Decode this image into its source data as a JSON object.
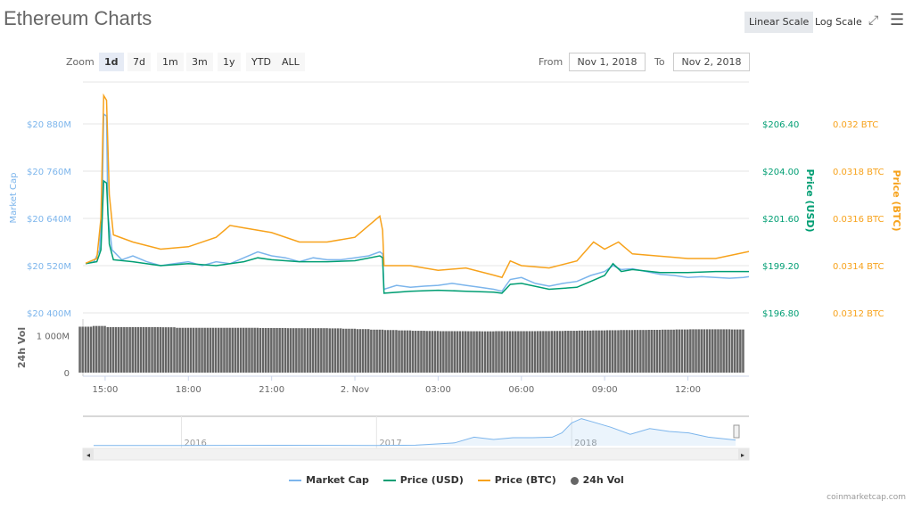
{
  "header": {
    "title": "Ethereum Charts",
    "linear_scale": "Linear Scale",
    "log_scale": "Log Scale"
  },
  "zoom": {
    "label": "Zoom",
    "buttons": [
      "1d",
      "7d",
      "1m",
      "3m",
      "1y",
      "YTD",
      "ALL"
    ],
    "active": "1d"
  },
  "range": {
    "from_label": "From",
    "from_value": "Nov 1, 2018",
    "to_label": "To",
    "to_value": "Nov 2, 2018"
  },
  "colors": {
    "market_cap": "#7cb5ec",
    "price_usd": "#009e73",
    "price_btc": "#f7a21b",
    "volume": "#666666"
  },
  "chart_data": {
    "type": "line",
    "x_unit": "hours since Nov 1 00:00",
    "x_range": [
      14.2,
      38.2
    ],
    "x_ticks": [
      {
        "h": 15,
        "label": "15:00"
      },
      {
        "h": 18,
        "label": "18:00"
      },
      {
        "h": 21,
        "label": "21:00"
      },
      {
        "h": 24,
        "label": "2. Nov"
      },
      {
        "h": 27,
        "label": "03:00"
      },
      {
        "h": 30,
        "label": "06:00"
      },
      {
        "h": 33,
        "label": "09:00"
      },
      {
        "h": 36,
        "label": "12:00"
      }
    ],
    "axes": {
      "market_cap": {
        "title": "Market Cap",
        "range": [
          20400,
          20880
        ],
        "ticks": [
          {
            "v": 20880,
            "label": "$20 880M"
          },
          {
            "v": 20760,
            "label": "$20 760M"
          },
          {
            "v": 20640,
            "label": "$20 640M"
          },
          {
            "v": 20520,
            "label": "$20 520M"
          },
          {
            "v": 20400,
            "label": "$20 400M"
          }
        ]
      },
      "price_usd": {
        "title": "Price (USD)",
        "range": [
          196.8,
          206.4
        ],
        "ticks": [
          {
            "v": 206.4,
            "label": "$206.40"
          },
          {
            "v": 204,
            "label": "$204.00"
          },
          {
            "v": 201.6,
            "label": "$201.60"
          },
          {
            "v": 199.2,
            "label": "$199.20"
          },
          {
            "v": 196.8,
            "label": "$196.80"
          }
        ]
      },
      "price_btc": {
        "title": "Price (BTC)",
        "range": [
          0.0312,
          0.032
        ],
        "ticks": [
          {
            "v": 0.032,
            "label": "0.032 BTC"
          },
          {
            "v": 0.0318,
            "label": "0.0318 BTC"
          },
          {
            "v": 0.0316,
            "label": "0.0316 BTC"
          },
          {
            "v": 0.0314,
            "label": "0.0314 BTC"
          },
          {
            "v": 0.0312,
            "label": "0.0312 BTC"
          }
        ]
      },
      "volume": {
        "title": "24h Vol",
        "max": 1300,
        "ticks": [
          {
            "v": 1000,
            "label": "1 000M"
          },
          {
            "v": 0,
            "label": "0"
          }
        ]
      }
    },
    "series": [
      {
        "name": "Market Cap",
        "axis": "market_cap",
        "points": [
          [
            14.3,
            20525
          ],
          [
            14.6,
            20530
          ],
          [
            14.8,
            20560
          ],
          [
            14.9,
            20700
          ],
          [
            14.95,
            20905
          ],
          [
            15.05,
            20900
          ],
          [
            15.1,
            20650
          ],
          [
            15.25,
            20560
          ],
          [
            15.6,
            20535
          ],
          [
            16,
            20545
          ],
          [
            16.5,
            20530
          ],
          [
            17,
            20520
          ],
          [
            17.5,
            20525
          ],
          [
            18,
            20530
          ],
          [
            18.5,
            20520
          ],
          [
            19,
            20530
          ],
          [
            19.5,
            20525
          ],
          [
            20,
            20540
          ],
          [
            20.5,
            20555
          ],
          [
            21,
            20545
          ],
          [
            21.5,
            20540
          ],
          [
            22,
            20530
          ],
          [
            22.5,
            20540
          ],
          [
            23,
            20535
          ],
          [
            23.5,
            20535
          ],
          [
            24,
            20540
          ],
          [
            24.5,
            20545
          ],
          [
            24.9,
            20555
          ],
          [
            25.0,
            20550
          ],
          [
            25.05,
            20460
          ],
          [
            25.5,
            20470
          ],
          [
            26,
            20465
          ],
          [
            26.5,
            20468
          ],
          [
            27,
            20470
          ],
          [
            27.5,
            20475
          ],
          [
            28,
            20470
          ],
          [
            28.5,
            20465
          ],
          [
            29,
            20460
          ],
          [
            29.3,
            20455
          ],
          [
            29.6,
            20485
          ],
          [
            30,
            20490
          ],
          [
            30.5,
            20475
          ],
          [
            31,
            20468
          ],
          [
            31.5,
            20475
          ],
          [
            32,
            20480
          ],
          [
            32.5,
            20495
          ],
          [
            33,
            20505
          ],
          [
            33.3,
            20520
          ],
          [
            33.6,
            20510
          ],
          [
            34,
            20512
          ],
          [
            34.5,
            20505
          ],
          [
            35,
            20498
          ],
          [
            35.5,
            20495
          ],
          [
            36,
            20490
          ],
          [
            36.5,
            20492
          ],
          [
            37,
            20490
          ],
          [
            37.5,
            20488
          ],
          [
            38,
            20490
          ],
          [
            38.2,
            20492
          ]
        ]
      },
      {
        "name": "Price (USD)",
        "axis": "price_usd",
        "points": [
          [
            14.3,
            199.3
          ],
          [
            14.7,
            199.4
          ],
          [
            14.85,
            200
          ],
          [
            14.95,
            203.5
          ],
          [
            15.05,
            203.4
          ],
          [
            15.15,
            200.3
          ],
          [
            15.3,
            199.5
          ],
          [
            16,
            199.4
          ],
          [
            17,
            199.2
          ],
          [
            18,
            199.3
          ],
          [
            19,
            199.2
          ],
          [
            20,
            199.4
          ],
          [
            20.5,
            199.6
          ],
          [
            21,
            199.5
          ],
          [
            22,
            199.4
          ],
          [
            23,
            199.4
          ],
          [
            24,
            199.45
          ],
          [
            24.9,
            199.7
          ],
          [
            25.0,
            199.6
          ],
          [
            25.05,
            197.8
          ],
          [
            26,
            197.9
          ],
          [
            27,
            197.95
          ],
          [
            28,
            197.9
          ],
          [
            29,
            197.85
          ],
          [
            29.3,
            197.8
          ],
          [
            29.6,
            198.25
          ],
          [
            30,
            198.3
          ],
          [
            31,
            198.0
          ],
          [
            32,
            198.1
          ],
          [
            32.5,
            198.4
          ],
          [
            33,
            198.7
          ],
          [
            33.3,
            199.3
          ],
          [
            33.6,
            198.9
          ],
          [
            34,
            199.0
          ],
          [
            35,
            198.85
          ],
          [
            36,
            198.85
          ],
          [
            37,
            198.9
          ],
          [
            38.2,
            198.9
          ]
        ]
      },
      {
        "name": "Price (BTC)",
        "axis": "price_btc",
        "points": [
          [
            14.3,
            0.03141
          ],
          [
            14.7,
            0.03143
          ],
          [
            14.85,
            0.0316
          ],
          [
            14.95,
            0.03212
          ],
          [
            15.05,
            0.0321
          ],
          [
            15.15,
            0.0317
          ],
          [
            15.3,
            0.03153
          ],
          [
            16,
            0.0315
          ],
          [
            17,
            0.03147
          ],
          [
            18,
            0.03148
          ],
          [
            19,
            0.03152
          ],
          [
            19.5,
            0.03157
          ],
          [
            20,
            0.03156
          ],
          [
            21,
            0.03154
          ],
          [
            22,
            0.0315
          ],
          [
            23,
            0.0315
          ],
          [
            24,
            0.03152
          ],
          [
            24.9,
            0.03161
          ],
          [
            25.0,
            0.03155
          ],
          [
            25.05,
            0.0314
          ],
          [
            26,
            0.0314
          ],
          [
            27,
            0.03138
          ],
          [
            28,
            0.03139
          ],
          [
            29,
            0.03136
          ],
          [
            29.3,
            0.03135
          ],
          [
            29.6,
            0.03142
          ],
          [
            30,
            0.0314
          ],
          [
            31,
            0.03139
          ],
          [
            32,
            0.03142
          ],
          [
            32.6,
            0.0315
          ],
          [
            33,
            0.03147
          ],
          [
            33.5,
            0.0315
          ],
          [
            34,
            0.03145
          ],
          [
            35,
            0.03144
          ],
          [
            36,
            0.03143
          ],
          [
            37,
            0.03143
          ],
          [
            38.2,
            0.03146
          ]
        ]
      }
    ],
    "volume": {
      "name": "24h Vol",
      "start_h": 14.3,
      "step_h": 0.5,
      "values": [
        1240,
        1260,
        1230,
        1230,
        1230,
        1230,
        1225,
        1210,
        1210,
        1210,
        1210,
        1210,
        1210,
        1205,
        1205,
        1200,
        1200,
        1200,
        1195,
        1185,
        1175,
        1160,
        1150,
        1140,
        1130,
        1125,
        1120,
        1120,
        1118,
        1115,
        1120,
        1120,
        1120,
        1122,
        1125,
        1130,
        1135,
        1140,
        1145,
        1150,
        1152,
        1155,
        1160,
        1165,
        1170,
        1170,
        1170,
        1165
      ]
    },
    "navigator": {
      "year_ticks": [
        {
          "y": 2016,
          "label": "2016"
        },
        {
          "y": 2017,
          "label": "2017"
        },
        {
          "y": 2018,
          "label": "2018"
        }
      ],
      "x_range": [
        2015.55,
        2018.84
      ],
      "points": [
        [
          2015.55,
          1
        ],
        [
          2016,
          1
        ],
        [
          2016.5,
          1.5
        ],
        [
          2017,
          1
        ],
        [
          2017.2,
          2
        ],
        [
          2017.4,
          10
        ],
        [
          2017.5,
          30
        ],
        [
          2017.6,
          22
        ],
        [
          2017.7,
          28
        ],
        [
          2017.8,
          28
        ],
        [
          2017.9,
          30
        ],
        [
          2017.95,
          45
        ],
        [
          2018.0,
          80
        ],
        [
          2018.05,
          95
        ],
        [
          2018.1,
          85
        ],
        [
          2018.2,
          65
        ],
        [
          2018.3,
          40
        ],
        [
          2018.4,
          60
        ],
        [
          2018.5,
          50
        ],
        [
          2018.6,
          45
        ],
        [
          2018.7,
          30
        ],
        [
          2018.84,
          20
        ]
      ]
    }
  },
  "legend": [
    "Market Cap",
    "Price (USD)",
    "Price (BTC)",
    "24h Vol"
  ],
  "credit": "coinmarketcap.com"
}
